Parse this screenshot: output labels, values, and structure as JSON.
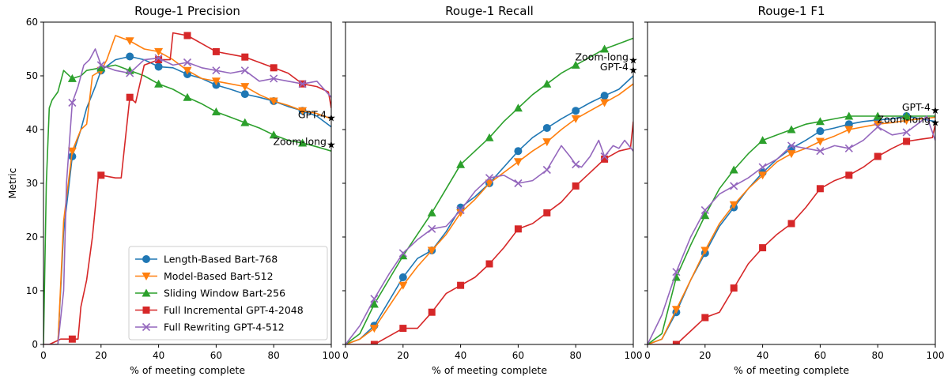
{
  "series_styles": [
    {
      "name": "Length-Based Bart-768",
      "color": "#1f77b4",
      "marker": "circle"
    },
    {
      "name": "Model-Based Bart-512",
      "color": "#ff7f0e",
      "marker": "triangle-down"
    },
    {
      "name": "Sliding Window Bart-256",
      "color": "#2ca02c",
      "marker": "triangle-up"
    },
    {
      "name": "Full Incremental GPT-4-2048",
      "color": "#d62728",
      "marker": "square"
    },
    {
      "name": "Full Rewriting GPT-4-512",
      "color": "#9467bd",
      "marker": "x"
    }
  ],
  "chart_data": [
    {
      "type": "line",
      "title": "Rouge-1 Precision",
      "xlabel": "% of meeting complete",
      "ylabel": "Metric",
      "xlim": [
        0,
        100
      ],
      "ylim": [
        0,
        60
      ],
      "xticks": [
        0,
        20,
        40,
        60,
        80,
        100
      ],
      "yticks": [
        0,
        10,
        20,
        30,
        40,
        50,
        60
      ],
      "grid": false,
      "legend": "lower-right",
      "series": [
        {
          "name": "Length-Based Bart-768",
          "x": [
            0,
            5,
            7,
            10,
            13,
            15,
            18,
            20,
            25,
            30,
            35,
            40,
            45,
            50,
            55,
            60,
            65,
            70,
            75,
            80,
            85,
            90,
            95,
            100
          ],
          "y": [
            0,
            0,
            21,
            35,
            40,
            44,
            48,
            51,
            53,
            53.6,
            53,
            51.7,
            51.5,
            50.3,
            49.5,
            48.3,
            47.5,
            46.6,
            46,
            45.3,
            44.3,
            43.5,
            42.5,
            40.5
          ]
        },
        {
          "name": "Model-Based Bart-512",
          "x": [
            0,
            5,
            7,
            10,
            13,
            15,
            17,
            20,
            22,
            25,
            30,
            35,
            40,
            45,
            50,
            55,
            60,
            65,
            70,
            75,
            80,
            85,
            90,
            95,
            100
          ],
          "y": [
            0,
            0,
            23,
            36,
            40,
            41,
            50,
            51,
            53,
            57.5,
            56.5,
            55,
            54.5,
            53,
            51,
            49.5,
            49,
            48.5,
            48,
            46.5,
            45.3,
            44.5,
            43.5,
            43,
            42
          ]
        },
        {
          "name": "Sliding Window Bart-256",
          "x": [
            0,
            1,
            2,
            3,
            5,
            7,
            10,
            13,
            15,
            20,
            25,
            30,
            35,
            40,
            45,
            50,
            55,
            60,
            65,
            70,
            75,
            80,
            85,
            90,
            95,
            100
          ],
          "y": [
            0,
            30,
            44,
            45.5,
            47,
            51,
            49.5,
            50,
            51,
            51.5,
            52,
            51,
            50,
            48.5,
            47.5,
            46,
            44.8,
            43.3,
            42.3,
            41.3,
            40.3,
            39,
            38,
            37.5,
            36.8,
            36
          ]
        },
        {
          "name": "Full Incremental GPT-4-2048",
          "x": [
            0,
            2,
            4,
            6,
            8,
            10,
            12,
            13,
            15,
            17,
            19,
            20,
            25,
            27,
            30,
            32,
            35,
            40,
            44,
            45,
            50,
            55,
            60,
            65,
            70,
            75,
            80,
            85,
            90,
            95,
            99,
            100
          ],
          "y": [
            0,
            0,
            0.5,
            1,
            1,
            1,
            1,
            7,
            12,
            20,
            31,
            31.5,
            31,
            31,
            46,
            45,
            52,
            53,
            53,
            58,
            57.5,
            56,
            54.5,
            54,
            53.5,
            52.5,
            51.5,
            50.5,
            48.5,
            48,
            47,
            44
          ]
        },
        {
          "name": "Full Rewriting GPT-4-512",
          "x": [
            0,
            5,
            7,
            8,
            10,
            12,
            14,
            16,
            18,
            20,
            25,
            30,
            35,
            40,
            45,
            50,
            55,
            60,
            65,
            70,
            75,
            80,
            85,
            90,
            95,
            100
          ],
          "y": [
            0,
            0,
            10,
            30,
            45,
            48,
            52,
            53,
            55,
            52,
            51,
            50.5,
            53,
            53.3,
            52,
            52.5,
            51.5,
            51,
            50.5,
            51,
            49,
            49.5,
            49,
            48.5,
            49,
            46
          ]
        }
      ],
      "annotations": [
        {
          "text": "GPT-4",
          "x": 100,
          "y": 42.3
        },
        {
          "text": "Zoom-long",
          "x": 100,
          "y": 37.3
        }
      ]
    },
    {
      "type": "line",
      "title": "Rouge-1 Recall",
      "xlabel": "% of meeting complete",
      "ylabel": "",
      "xlim": [
        0,
        100
      ],
      "ylim": [
        0,
        60
      ],
      "xticks": [
        0,
        20,
        40,
        60,
        80,
        100
      ],
      "yticks": [
        0,
        10,
        20,
        30,
        40,
        50,
        60
      ],
      "grid": false,
      "series": [
        {
          "name": "Length-Based Bart-768",
          "x": [
            0,
            5,
            10,
            15,
            20,
            25,
            30,
            35,
            40,
            45,
            50,
            55,
            60,
            65,
            70,
            75,
            80,
            85,
            90,
            95,
            100
          ],
          "y": [
            0,
            1,
            3.5,
            8,
            12.5,
            16,
            17.5,
            21,
            25.5,
            27.5,
            30,
            33,
            36,
            38.5,
            40.3,
            42,
            43.5,
            45,
            46.3,
            47.5,
            50
          ]
        },
        {
          "name": "Model-Based Bart-512",
          "x": [
            0,
            5,
            10,
            15,
            20,
            25,
            30,
            35,
            40,
            45,
            50,
            55,
            60,
            65,
            70,
            75,
            80,
            85,
            90,
            95,
            100
          ],
          "y": [
            0,
            1,
            3,
            7,
            11,
            14.5,
            17.5,
            20.5,
            24.5,
            27,
            30,
            32,
            34,
            36,
            37.7,
            40,
            42,
            43.5,
            45,
            46.5,
            48.5
          ]
        },
        {
          "name": "Sliding Window Bart-256",
          "x": [
            0,
            5,
            10,
            15,
            20,
            25,
            30,
            35,
            40,
            45,
            50,
            55,
            60,
            65,
            70,
            75,
            80,
            85,
            90,
            95,
            100
          ],
          "y": [
            0,
            2,
            7.5,
            12,
            16.5,
            20.5,
            24.5,
            29,
            33.5,
            36,
            38.5,
            41.5,
            44,
            46.5,
            48.5,
            50.5,
            52,
            53.5,
            55,
            56,
            57
          ]
        },
        {
          "name": "Full Incremental GPT-4-2048",
          "x": [
            0,
            5,
            10,
            15,
            20,
            25,
            30,
            35,
            40,
            45,
            50,
            55,
            60,
            65,
            70,
            75,
            80,
            85,
            90,
            95,
            99,
            100
          ],
          "y": [
            0,
            0,
            0,
            1.5,
            3,
            3,
            6,
            9.5,
            11,
            12.5,
            15,
            18,
            21.5,
            22.5,
            24.5,
            26.5,
            29.5,
            32,
            34.5,
            36,
            36.5,
            41.5
          ]
        },
        {
          "name": "Full Rewriting GPT-4-512",
          "x": [
            0,
            5,
            10,
            15,
            20,
            25,
            30,
            35,
            40,
            45,
            50,
            55,
            60,
            65,
            70,
            75,
            78,
            80,
            82,
            85,
            88,
            90,
            93,
            95,
            97,
            100
          ],
          "y": [
            0,
            3.5,
            8.5,
            13,
            17,
            19.5,
            21.5,
            22,
            25,
            28.5,
            31,
            31.5,
            30,
            30.5,
            32.5,
            37,
            35,
            33.5,
            33,
            35,
            38,
            35,
            37,
            36.5,
            38,
            36
          ]
        }
      ],
      "annotations": [
        {
          "text": "Zoom-long",
          "x": 100,
          "y": 53
        },
        {
          "text": "GPT-4",
          "x": 100,
          "y": 51.2
        }
      ]
    },
    {
      "type": "line",
      "title": "Rouge-1 F1",
      "xlabel": "% of meeting complete",
      "ylabel": "",
      "xlim": [
        0,
        100
      ],
      "ylim": [
        0,
        60
      ],
      "xticks": [
        0,
        20,
        40,
        60,
        80,
        100
      ],
      "yticks": [
        0,
        10,
        20,
        30,
        40,
        50,
        60
      ],
      "grid": false,
      "series": [
        {
          "name": "Length-Based Bart-768",
          "x": [
            0,
            5,
            10,
            15,
            20,
            25,
            30,
            35,
            40,
            45,
            50,
            55,
            60,
            65,
            70,
            75,
            80,
            85,
            90,
            95,
            100
          ],
          "y": [
            0,
            1,
            6,
            12,
            17,
            22,
            25.5,
            29,
            32,
            34.5,
            36.5,
            38,
            39.7,
            40.3,
            41,
            41.5,
            41.8,
            42,
            42.5,
            42,
            41.5
          ]
        },
        {
          "name": "Model-Based Bart-512",
          "x": [
            0,
            5,
            10,
            15,
            20,
            25,
            30,
            35,
            40,
            45,
            50,
            55,
            60,
            65,
            70,
            75,
            80,
            85,
            90,
            95,
            100
          ],
          "y": [
            0,
            1,
            6.5,
            12,
            17.5,
            22.5,
            26,
            29,
            31.5,
            34,
            35.5,
            36.5,
            37.8,
            38.8,
            40,
            40.5,
            41,
            41.3,
            41.7,
            42,
            42.3
          ]
        },
        {
          "name": "Sliding Window Bart-256",
          "x": [
            0,
            5,
            10,
            15,
            20,
            25,
            30,
            35,
            40,
            45,
            50,
            55,
            60,
            65,
            70,
            75,
            80,
            85,
            90,
            95,
            100
          ],
          "y": [
            0,
            2,
            12.5,
            18.5,
            24,
            29,
            32.5,
            35.5,
            38,
            39,
            40,
            41,
            41.5,
            42,
            42.5,
            42.5,
            42.5,
            42.5,
            42.5,
            42.5,
            42.5
          ]
        },
        {
          "name": "Full Incremental GPT-4-2048",
          "x": [
            0,
            5,
            10,
            15,
            20,
            25,
            30,
            35,
            40,
            45,
            50,
            55,
            60,
            65,
            70,
            75,
            80,
            85,
            90,
            95,
            99,
            100
          ],
          "y": [
            0,
            0,
            0,
            2.5,
            5,
            6,
            10.5,
            15,
            18,
            20.5,
            22.5,
            25.5,
            29,
            30.5,
            31.5,
            33,
            35,
            36.5,
            37.8,
            38.2,
            38.5,
            41
          ]
        },
        {
          "name": "Full Rewriting GPT-4-512",
          "x": [
            0,
            5,
            10,
            15,
            20,
            25,
            30,
            35,
            40,
            45,
            50,
            55,
            60,
            65,
            70,
            75,
            80,
            85,
            90,
            95,
            97,
            100
          ],
          "y": [
            0,
            5.5,
            13.5,
            20,
            25,
            28,
            29.5,
            31,
            33,
            34.5,
            37,
            36.5,
            36,
            37,
            36.5,
            38,
            40.5,
            39,
            39.5,
            41.5,
            42.5,
            38
          ]
        }
      ],
      "annotations": [
        {
          "text": "GPT-4",
          "x": 100,
          "y": 43.7
        },
        {
          "text": "Zoom-long",
          "x": 100,
          "y": 41.4
        }
      ]
    }
  ]
}
